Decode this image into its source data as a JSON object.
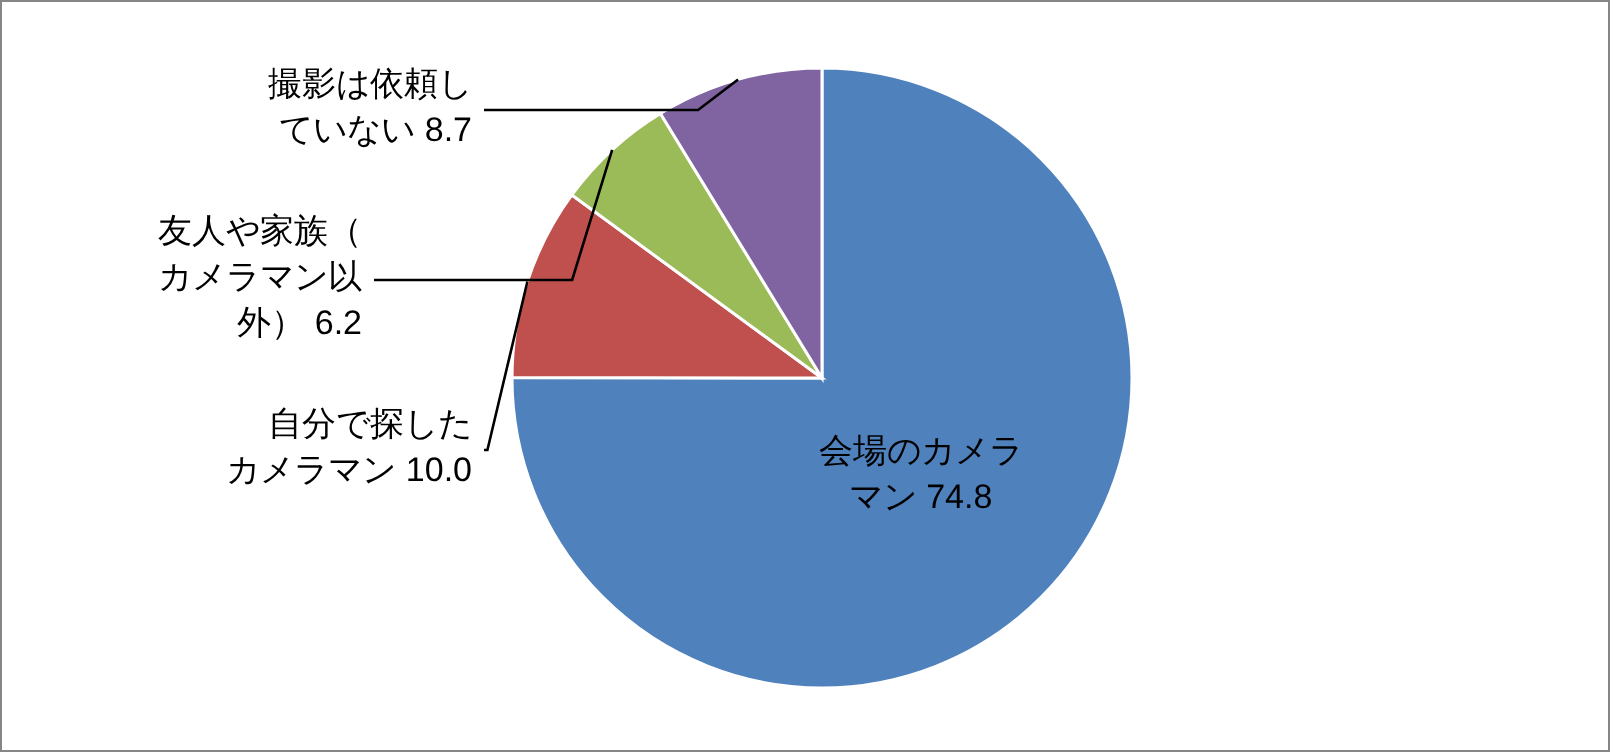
{
  "chart_data": {
    "type": "pie",
    "categories": [
      "会場のカメラマン",
      "自分で探したカメラマン",
      "友人や家族（カメラマン以外）",
      "撮影は依頼していない"
    ],
    "values": [
      74.8,
      10.0,
      6.2,
      8.7
    ],
    "value_labels": [
      "74.8",
      "10.0",
      "6.2",
      "8.7"
    ],
    "colors": [
      "#4f81bd",
      "#c0504d",
      "#9bbb59",
      "#8064a2"
    ]
  }
}
